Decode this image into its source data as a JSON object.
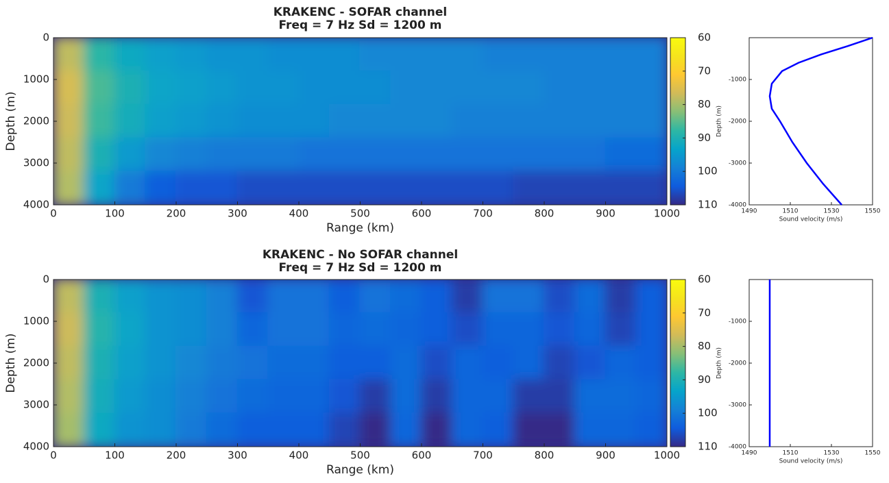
{
  "chart_data": [
    {
      "type": "heatmap",
      "title": [
        "KRAKENC - SOFAR channel",
        "Freq = 7 Hz    Sd = 1200 m"
      ],
      "x_label": "Range (km)",
      "y_label": "Depth (m)",
      "xlim": [
        0,
        1000
      ],
      "xticks": [
        0,
        100,
        200,
        300,
        400,
        500,
        600,
        700,
        800,
        900,
        1000
      ],
      "ylim": [
        4000,
        0
      ],
      "yticks": [
        0,
        1000,
        2000,
        3000,
        4000
      ],
      "clim": [
        60,
        110
      ],
      "cticks": [
        60,
        70,
        80,
        90,
        100,
        110
      ],
      "colormap": [
        "#f9fb0e",
        "#f5e41d",
        "#fec832",
        "#d1bb59",
        "#87bf77",
        "#2eb7a4",
        "#06a4ca",
        "#1481d6",
        "#0f5cdd",
        "#352a87"
      ],
      "x": [
        25,
        75,
        125,
        175,
        225,
        275,
        325,
        375,
        425,
        475,
        525,
        575,
        625,
        675,
        725,
        775,
        825,
        875,
        925,
        975
      ],
      "y": [
        400,
        1200,
        2000,
        2800,
        3600
      ],
      "z": [
        [
          78,
          88,
          92,
          94,
          95,
          96,
          96,
          97,
          97,
          97,
          98,
          98,
          98,
          98,
          99,
          99,
          99,
          99,
          99,
          99
        ],
        [
          76,
          86,
          90,
          93,
          94,
          95,
          96,
          96,
          97,
          97,
          97,
          98,
          98,
          98,
          98,
          98,
          99,
          99,
          99,
          99
        ],
        [
          77,
          87,
          91,
          94,
          95,
          96,
          97,
          97,
          97,
          98,
          98,
          98,
          98,
          99,
          99,
          99,
          99,
          99,
          99,
          99
        ],
        [
          78,
          90,
          95,
          98,
          99,
          100,
          100,
          100,
          101,
          101,
          101,
          101,
          101,
          101,
          101,
          101,
          101,
          101,
          102,
          102
        ],
        [
          79,
          93,
          100,
          104,
          105,
          105,
          106,
          106,
          106,
          106,
          106,
          106,
          106,
          106,
          106,
          107,
          107,
          107,
          107,
          107
        ]
      ]
    },
    {
      "type": "line",
      "x_label": "Sound velocity (m/s)",
      "y_label": "Depth (m)",
      "color": "#0000ff",
      "xlim": [
        1490,
        1550
      ],
      "xticks": [
        1490,
        1510,
        1530,
        1550
      ],
      "ylim": [
        -4000,
        0
      ],
      "yticks": [
        -1000,
        -2000,
        -3000,
        -4000
      ],
      "x": [
        1550,
        1538,
        1525,
        1514,
        1506,
        1501,
        1500,
        1501,
        1505,
        1511,
        1518,
        1526,
        1535
      ],
      "values": [
        0,
        -200,
        -400,
        -600,
        -800,
        -1100,
        -1400,
        -1700,
        -2000,
        -2500,
        -3000,
        -3500,
        -4000
      ]
    },
    {
      "type": "heatmap",
      "title": [
        "KRAKENC - No SOFAR channel",
        "Freq = 7 Hz    Sd = 1200 m"
      ],
      "x_label": "Range (km)",
      "y_label": "Depth (m)",
      "xlim": [
        0,
        1000
      ],
      "xticks": [
        0,
        100,
        200,
        300,
        400,
        500,
        600,
        700,
        800,
        900,
        1000
      ],
      "ylim": [
        4000,
        0
      ],
      "yticks": [
        0,
        1000,
        2000,
        3000,
        4000
      ],
      "clim": [
        60,
        110
      ],
      "cticks": [
        60,
        70,
        80,
        90,
        100,
        110
      ],
      "colormap": [
        "#f9fb0e",
        "#f5e41d",
        "#fec832",
        "#d1bb59",
        "#87bf77",
        "#2eb7a4",
        "#06a4ca",
        "#1481d6",
        "#0f5cdd",
        "#352a87"
      ],
      "x": [
        25,
        75,
        125,
        175,
        225,
        275,
        325,
        375,
        425,
        475,
        525,
        575,
        625,
        675,
        725,
        775,
        825,
        875,
        925,
        975
      ],
      "y": [
        400,
        1200,
        2000,
        2800,
        3600
      ],
      "z": [
        [
          78,
          90,
          94,
          96,
          97,
          99,
          105,
          101,
          101,
          104,
          101,
          102,
          104,
          108,
          101,
          101,
          106,
          102,
          108,
          104
        ],
        [
          77,
          89,
          93,
          96,
          97,
          99,
          103,
          101,
          101,
          103,
          102,
          103,
          104,
          106,
          103,
          103,
          105,
          103,
          107,
          104
        ],
        [
          78,
          90,
          94,
          96,
          98,
          100,
          101,
          102,
          102,
          104,
          104,
          102,
          106,
          103,
          104,
          103,
          107,
          105,
          103,
          104
        ],
        [
          79,
          91,
          95,
          97,
          99,
          101,
          102,
          103,
          103,
          105,
          108,
          102,
          108,
          103,
          103,
          108,
          108,
          102,
          102,
          103
        ],
        [
          80,
          92,
          96,
          97,
          100,
          102,
          104,
          104,
          104,
          107,
          110,
          103,
          110,
          103,
          104,
          110,
          110,
          103,
          103,
          104
        ]
      ]
    },
    {
      "type": "line",
      "x_label": "Sound velocity (m/s)",
      "y_label": "Depth (m)",
      "color": "#0000ff",
      "xlim": [
        1490,
        1550
      ],
      "xticks": [
        1490,
        1510,
        1530,
        1550
      ],
      "ylim": [
        -4000,
        0
      ],
      "yticks": [
        -1000,
        -2000,
        -3000,
        -4000
      ],
      "x": [
        1500,
        1500
      ],
      "values": [
        0,
        -4000
      ]
    }
  ]
}
